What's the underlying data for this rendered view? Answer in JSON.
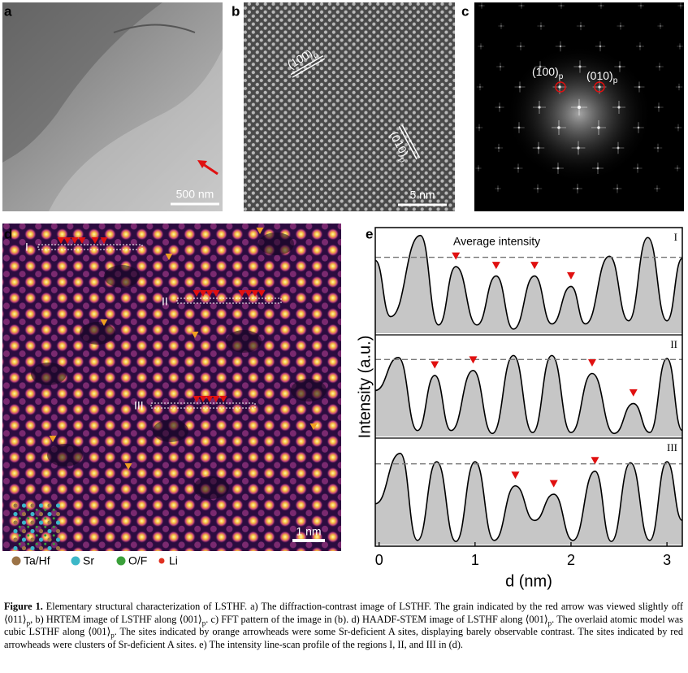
{
  "figure": {
    "a": {
      "label": "a",
      "scale_bar": "500 nm"
    },
    "b": {
      "label": "b",
      "scale_bar": "5 nm",
      "planes": [
        {
          "text": "(100)",
          "sub": "p"
        },
        {
          "text": "(010)",
          "sub": "p"
        }
      ]
    },
    "c": {
      "label": "c",
      "spots": [
        {
          "text": "(100)",
          "sub": "p"
        },
        {
          "text": "(010)",
          "sub": "p"
        }
      ]
    },
    "d": {
      "label": "d",
      "scale_bar": "1 nm",
      "regions": [
        "I",
        "II",
        "III"
      ],
      "legend": [
        {
          "name": "Ta/Hf",
          "color": "#9c7346"
        },
        {
          "name": "Sr",
          "color": "#3cb8c8"
        },
        {
          "name": "O/F",
          "color": "#3aa03a"
        },
        {
          "name": "Li",
          "color": "#e03020"
        }
      ]
    }
  },
  "chart_data": {
    "type": "line",
    "label": "e",
    "annotation": "Average intensity",
    "xlabel": "d (nm)",
    "ylabel": "Intensity (a.u.)",
    "xlim": [
      -0.04,
      3.16
    ],
    "xticks": [
      0,
      1,
      2,
      3
    ],
    "ylim": [
      0,
      1
    ],
    "fill": "#c6c6c6",
    "marker_color": "#e01010",
    "series": [
      {
        "name": "I",
        "average": 0.73,
        "markers": [
          0.8,
          1.22,
          1.62,
          2.0
        ],
        "x": [
          -0.04,
          0.12,
          0.43,
          0.62,
          0.8,
          1.02,
          1.22,
          1.4,
          1.62,
          1.8,
          2.0,
          2.15,
          2.4,
          2.6,
          2.8,
          3.0,
          3.16
        ],
        "values": [
          0.7,
          0.16,
          0.94,
          0.08,
          0.64,
          0.08,
          0.55,
          0.04,
          0.55,
          0.09,
          0.45,
          0.09,
          0.74,
          0.12,
          0.92,
          0.12,
          0.72
        ]
      },
      {
        "name": "II",
        "average": 0.77,
        "markers": [
          0.58,
          0.98,
          2.22,
          2.65
        ],
        "x": [
          -0.04,
          0.2,
          0.4,
          0.58,
          0.75,
          0.98,
          1.18,
          1.4,
          1.6,
          1.8,
          2.0,
          2.22,
          2.45,
          2.65,
          2.82,
          3.0,
          3.16
        ],
        "values": [
          0.46,
          0.79,
          0.06,
          0.61,
          0.06,
          0.66,
          0.03,
          0.81,
          0.04,
          0.81,
          0.04,
          0.63,
          0.03,
          0.33,
          0.04,
          0.78,
          0.06
        ]
      },
      {
        "name": "III",
        "average": 0.77,
        "markers": [
          1.42,
          1.82,
          2.25
        ],
        "x": [
          -0.04,
          0.22,
          0.4,
          0.6,
          0.8,
          1.0,
          1.2,
          1.42,
          1.62,
          1.82,
          2.02,
          2.25,
          2.42,
          2.62,
          2.82,
          3.0,
          3.16
        ],
        "values": [
          0.39,
          0.87,
          0.04,
          0.79,
          0.03,
          0.79,
          0.04,
          0.56,
          0.23,
          0.48,
          0.04,
          0.7,
          0.03,
          0.78,
          0.04,
          0.79,
          0.23
        ]
      }
    ]
  },
  "caption": {
    "label": "Figure 1.",
    "runs": [
      {
        "text": "Elementary structural characterization of LSTHF. a) The diffraction-contrast image of LSTHF. The grain indicated by the red arrow was viewed slightly off ⟨011⟩"
      },
      {
        "sub": "p"
      },
      {
        "text": ", b) HRTEM image of LSTHF along ⟨001⟩"
      },
      {
        "sub": "p"
      },
      {
        "text": ". c) FFT pattern of the image in (b). d) HAADF-STEM image of LSTHF along ⟨001⟩"
      },
      {
        "sub": "p"
      },
      {
        "text": ". The overlaid atomic model was cubic LSTHF along ⟨001⟩"
      },
      {
        "sub": "p"
      },
      {
        "text": ". The sites indicated by orange arrowheads were some Sr-deficient A sites, displaying barely observable contrast. The sites indicated by red arrowheads were clusters of Sr-deficient A sites. e) The intensity line-scan profile of the regions I, II, and III in (d)."
      }
    ]
  }
}
